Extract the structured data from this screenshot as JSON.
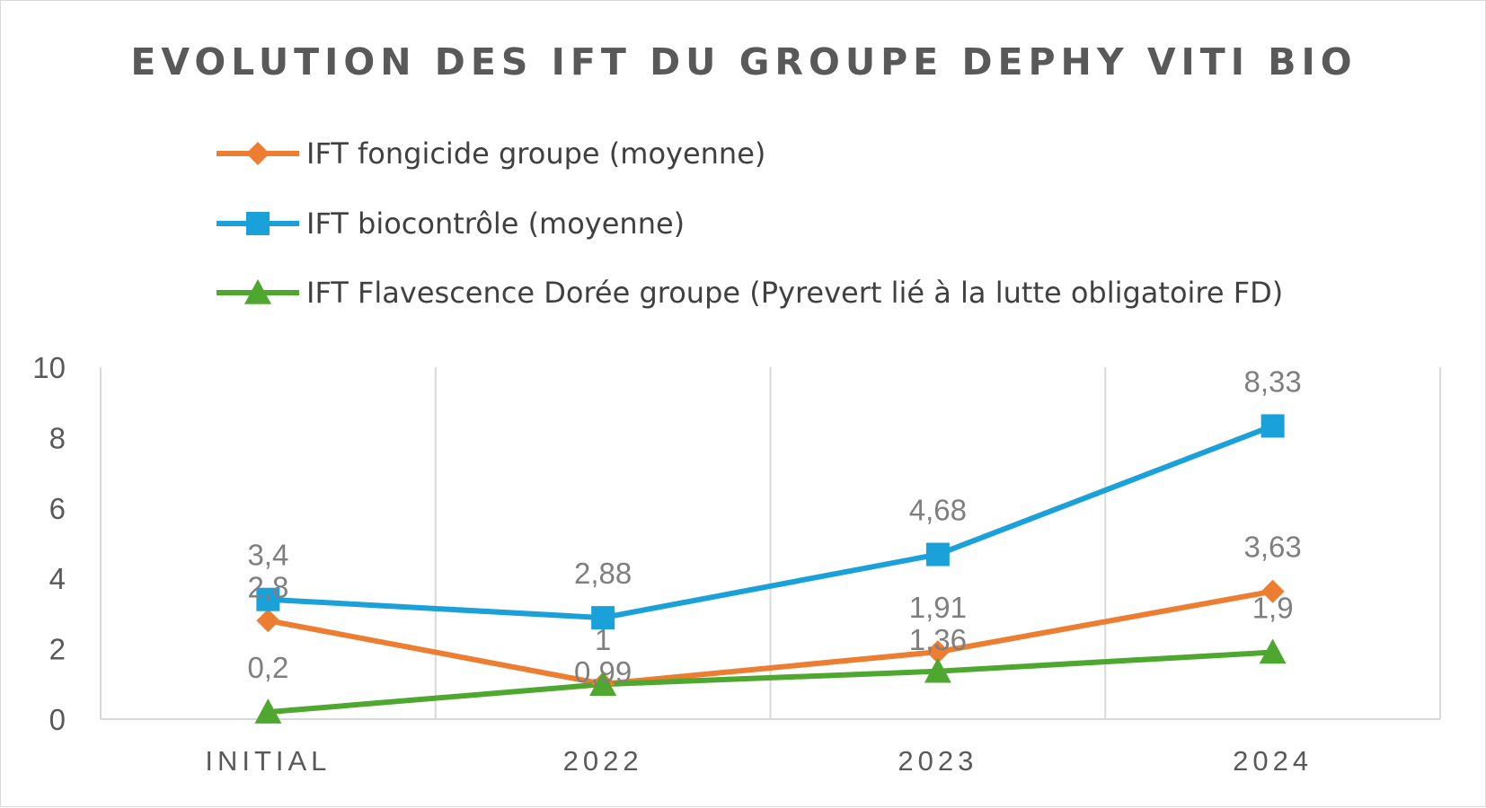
{
  "chart_data": {
    "type": "line",
    "title": "EVOLUTION DES IFT DU GROUPE DEPHY VITI BIO",
    "categories": [
      "INITIAL",
      "2022",
      "2023",
      "2024"
    ],
    "y_ticks": [
      "0",
      "2",
      "4",
      "6",
      "8",
      "10"
    ],
    "ylim": [
      0,
      10
    ],
    "grid": "vertical",
    "legend_position": "top-left",
    "series": [
      {
        "name": "IFT fongicide groupe (moyenne)",
        "color": "#ed7d31",
        "marker": "diamond",
        "values": [
          2.8,
          1.0,
          1.91,
          3.63
        ],
        "labels": [
          "2,8",
          "1",
          "1,91",
          "3,63"
        ]
      },
      {
        "name": "IFT biocontrôle (moyenne)",
        "color": "#1ba1d9",
        "marker": "square",
        "values": [
          3.4,
          2.88,
          4.68,
          8.33
        ],
        "labels": [
          "3,4",
          "2,88",
          "4,68",
          "8,33"
        ]
      },
      {
        "name": "IFT Flavescence Dorée groupe (Pyrevert lié à la lutte obligatoire FD)",
        "color": "#4ea72e",
        "marker": "triangle",
        "values": [
          0.2,
          0.99,
          1.36,
          1.9
        ],
        "labels": [
          "0,2",
          "0,99",
          "1,36",
          "1,9"
        ]
      }
    ]
  }
}
